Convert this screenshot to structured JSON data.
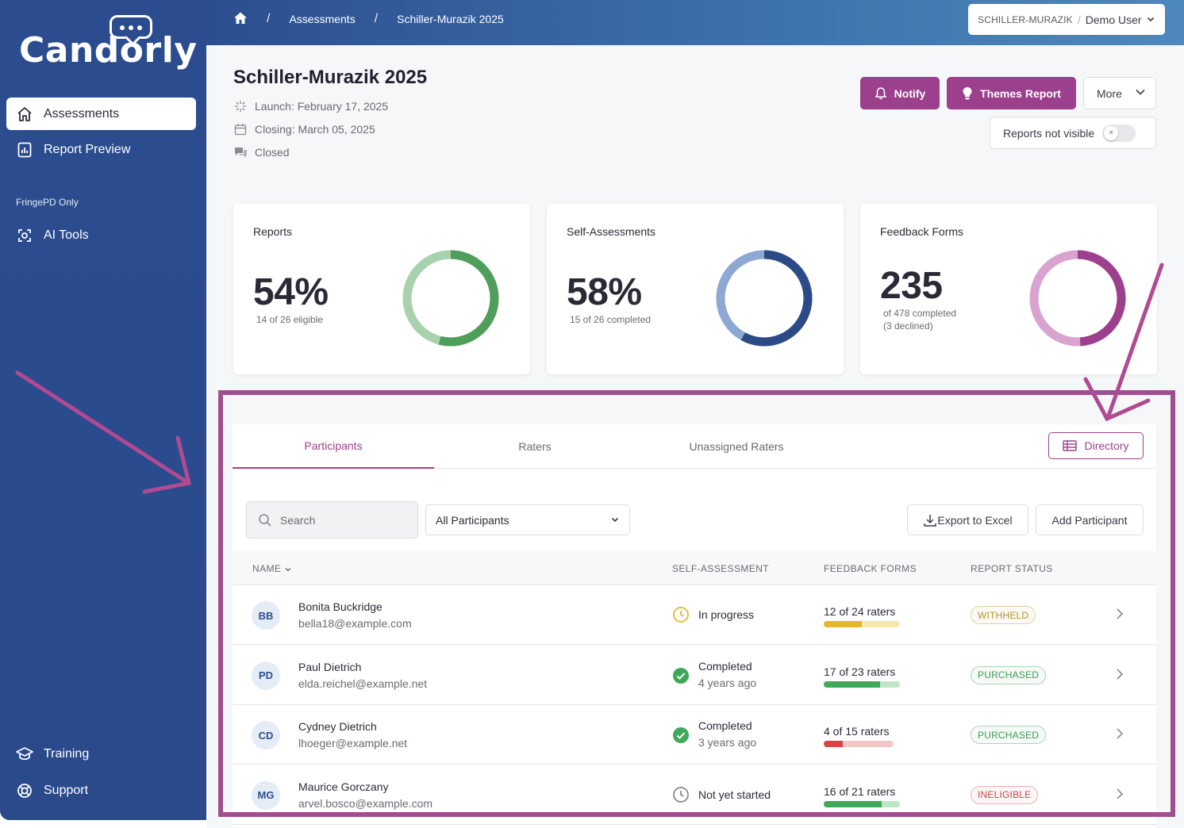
{
  "app": {
    "logo_text": "Candorly"
  },
  "sidebar": {
    "items": [
      {
        "label": "Assessments",
        "icon": "home-icon"
      },
      {
        "label": "Report Preview",
        "icon": "report-icon"
      }
    ],
    "section_label": "FringePD Only",
    "section_items": [
      {
        "label": "AI Tools",
        "icon": "ai-tools-icon"
      }
    ],
    "bottom_items": [
      {
        "label": "Training",
        "icon": "graduation-cap-icon"
      },
      {
        "label": "Support",
        "icon": "lifebuoy-icon"
      }
    ]
  },
  "topbar": {
    "breadcrumbs": [
      "Assessments",
      "Schiller-Murazik 2025"
    ],
    "org": "SCHILLER-MURAZIK",
    "user": "Demo User"
  },
  "header": {
    "title": "Schiller-Murazik 2025",
    "launch": "Launch: February 17, 2025",
    "closing": "Closing: March 05, 2025",
    "status": "Closed",
    "notify_label": "Notify",
    "themes_label": "Themes Report",
    "more_label": "More",
    "visibility_label": "Reports not visible"
  },
  "cards": [
    {
      "title": "Reports",
      "value": "54%",
      "sub": "14 of 26 eligible",
      "sub2": "",
      "fraction": 0.54,
      "color_fg": "#4f9e5a",
      "color_bg": "#a8d2ad"
    },
    {
      "title": "Self-Assessments",
      "value": "58%",
      "sub": "15 of 26 completed",
      "sub2": "",
      "fraction": 0.58,
      "color_fg": "#2c4a86",
      "color_bg": "#8ea8d4"
    },
    {
      "title": "Feedback Forms",
      "value": "235",
      "sub": "of 478 completed",
      "sub2": "(3 declined)",
      "fraction": 0.49,
      "color_fg": "#9c3f8d",
      "color_bg": "#d9a3cf"
    }
  ],
  "panel": {
    "tabs": [
      "Participants",
      "Raters",
      "Unassigned Raters"
    ],
    "directory_label": "Directory",
    "search_placeholder": "Search",
    "filter_value": "All Participants",
    "export_label": "Export to Excel",
    "add_label": "Add Participant",
    "columns": [
      "NAME",
      "SELF-ASSESSMENT",
      "FEEDBACK FORMS",
      "REPORT STATUS"
    ]
  },
  "participants": [
    {
      "initials": "BB",
      "name": "Bonita Buckridge",
      "email": "bella18@example.com",
      "sa_status": "In progress",
      "sa_when": "",
      "sa_icon": "clock-icon",
      "ff": "12 of 24 raters",
      "ff_fraction": 0.5,
      "ff_color": "#e5b631",
      "ff_bg": "#f7eaa6",
      "badge": "WITHHELD",
      "badge_color": "#b8922a"
    },
    {
      "initials": "PD",
      "name": "Paul Dietrich",
      "email": "elda.reichel@example.net",
      "sa_status": "Completed",
      "sa_when": "4 years ago",
      "sa_icon": "check-circle-icon",
      "ff": "17 of 23 raters",
      "ff_fraction": 0.74,
      "ff_color": "#3fa85a",
      "ff_bg": "#bfe6c7",
      "badge": "PURCHASED",
      "badge_color": "#3f9a56"
    },
    {
      "initials": "CD",
      "name": "Cydney Dietrich",
      "email": "lhoeger@example.net",
      "sa_status": "Completed",
      "sa_when": "3 years ago",
      "sa_icon": "check-circle-icon",
      "ff": "4 of 15 raters",
      "ff_fraction": 0.27,
      "ff_color": "#d94545",
      "ff_bg": "#f5c6c6",
      "badge": "PURCHASED",
      "badge_color": "#3f9a56"
    },
    {
      "initials": "MG",
      "name": "Maurice Gorczany",
      "email": "arvel.bosco@example.com",
      "sa_status": "Not yet started",
      "sa_when": "",
      "sa_icon": "clock-outline-icon",
      "ff": "16 of 21 raters",
      "ff_fraction": 0.76,
      "ff_color": "#3fa85a",
      "ff_bg": "#bfe6c7",
      "badge": "INELIGIBLE",
      "badge_color": "#c94a4a"
    }
  ]
}
